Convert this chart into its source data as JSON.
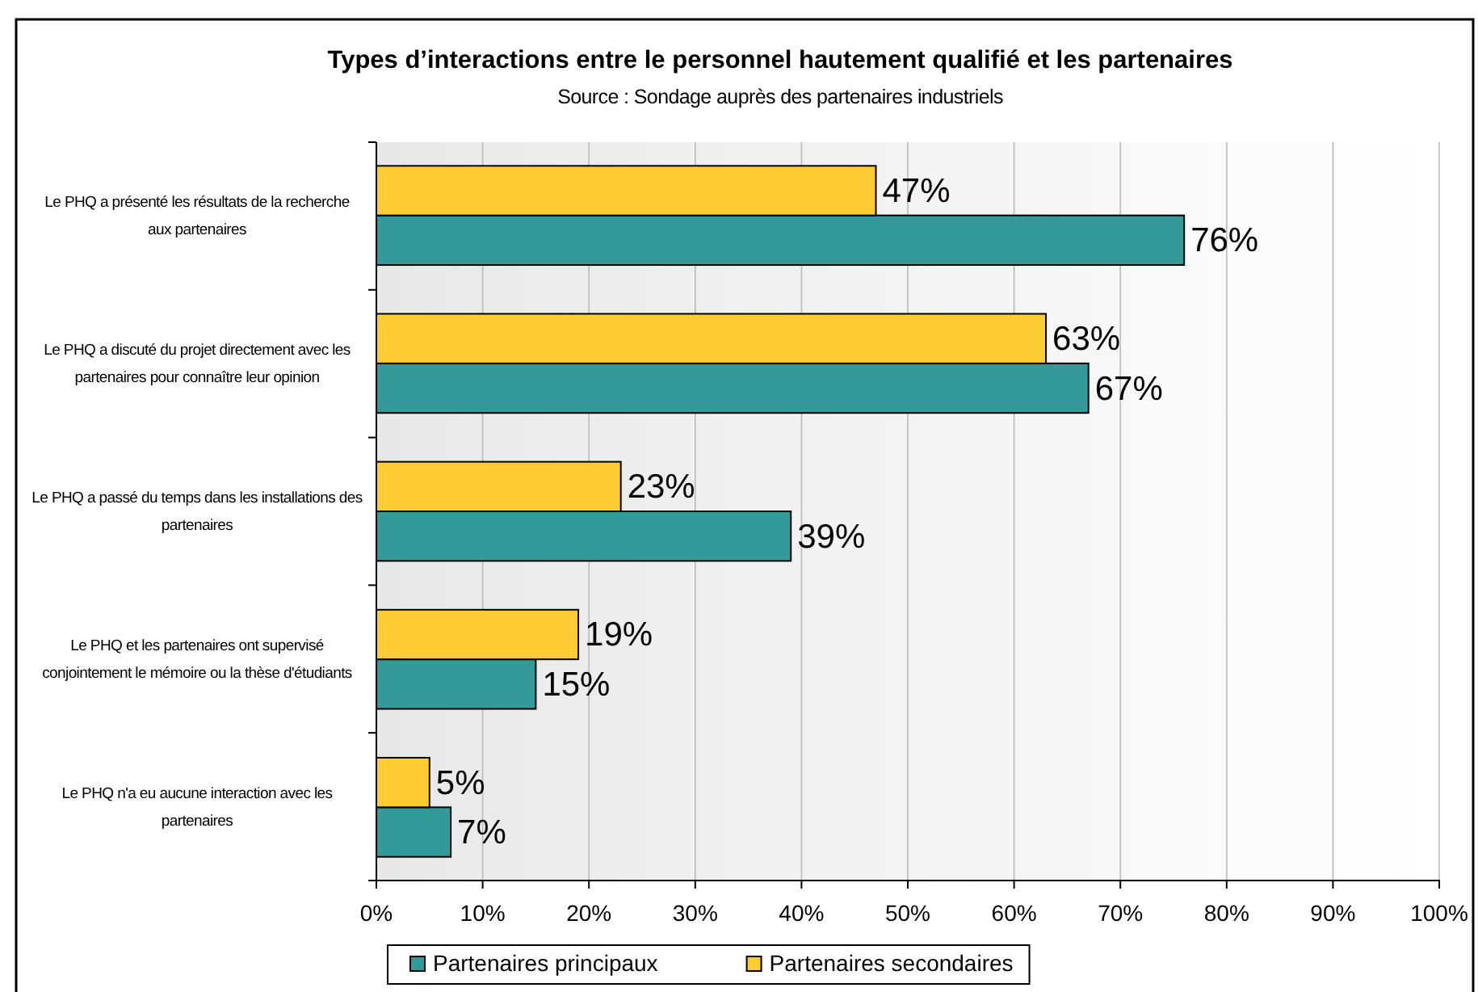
{
  "chart_data": {
    "type": "bar",
    "orientation": "horizontal",
    "title": "Types d’interactions entre le personnel hautement qualifié et les partenaires",
    "subtitle": "Source : Sondage auprès des partenaires industriels",
    "categories": [
      "Le PHQ a présenté les résultats de la recherche aux partenaires",
      "Le PHQ a discuté du projet directement avec les partenaires pour connaître leur opinion",
      "Le PHQ a passé du temps dans les installations des partenaires",
      "Le PHQ et les partenaires ont supervisé conjointement le mémoire ou la thèse d'étudiants",
      "Le PHQ n'a eu aucune interaction avec les partenaires"
    ],
    "series": [
      {
        "name": "Partenaires principaux",
        "color": "#339999",
        "values": [
          76,
          67,
          39,
          15,
          7
        ],
        "value_labels": [
          "76%",
          "67%",
          "39%",
          "15%",
          "7%"
        ]
      },
      {
        "name": "Partenaires secondaires",
        "color": "#ffcc33",
        "values": [
          47,
          63,
          23,
          19,
          5
        ],
        "value_labels": [
          "47%",
          "63%",
          "23%",
          "19%",
          "5%"
        ]
      }
    ],
    "xlim": [
      0,
      100
    ],
    "xticks": [
      {
        "value": 0,
        "label": "0%"
      },
      {
        "value": 10,
        "label": "10%"
      },
      {
        "value": 20,
        "label": "20%"
      },
      {
        "value": 30,
        "label": "30%"
      },
      {
        "value": 40,
        "label": "40%"
      },
      {
        "value": 50,
        "label": "50%"
      },
      {
        "value": 60,
        "label": "60%"
      },
      {
        "value": 70,
        "label": "70%"
      },
      {
        "value": 80,
        "label": "80%"
      },
      {
        "value": 90,
        "label": "90%"
      },
      {
        "value": 100,
        "label": "100%"
      }
    ],
    "grid": "x",
    "legend": "bottom"
  }
}
